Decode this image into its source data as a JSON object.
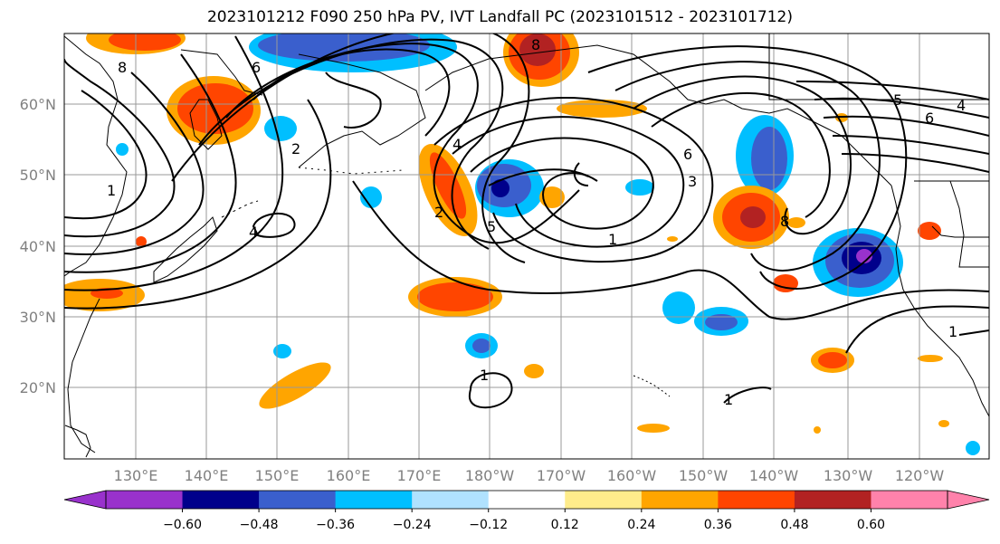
{
  "title": "2023101212 F090 250 hPa PV, IVT Landfall PC (2023101512 - 2023101712)",
  "map": {
    "lon_labels": [
      "130°E",
      "140°E",
      "150°E",
      "160°E",
      "170°E",
      "180°W",
      "170°W",
      "160°W",
      "150°W",
      "140°W",
      "130°W",
      "120°W"
    ],
    "lat_labels": [
      "60°N",
      "50°N",
      "40°N",
      "30°N",
      "20°N"
    ],
    "contour_labels": [
      "8",
      "6",
      "5",
      "4",
      "3",
      "2",
      "1"
    ]
  },
  "colorbar": {
    "colors": [
      "#9932cc",
      "#00008b",
      "#3a5fcd",
      "#00bfff",
      "#b0e2ff",
      "#ffffff",
      "#ffec8b",
      "#ffa500",
      "#ff4500",
      "#b22222",
      "#ff82ab"
    ],
    "tick_labels": [
      "−0.60",
      "−0.48",
      "−0.36",
      "−0.24",
      "−0.12",
      "0.12",
      "0.24",
      "0.36",
      "0.48",
      "0.60"
    ]
  }
}
